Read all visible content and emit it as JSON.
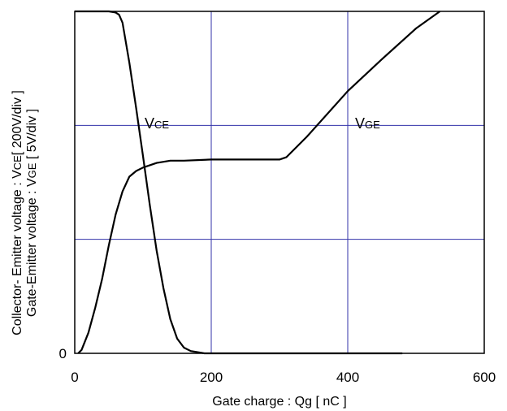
{
  "chart_data": {
    "type": "line",
    "xlabel": "Gate charge : Qg [ nC ]",
    "ylabel_line1_pre": "Collector- Emitter voltage : V",
    "ylabel_line1_sub": "CE",
    "ylabel_line1_post": "[ 200V/div ]",
    "ylabel_line2_pre": "Gate-Emitter voltage : V",
    "ylabel_line2_sub": "GE",
    "ylabel_line2_post": " [ 5V/div ]",
    "xlim": [
      0,
      600
    ],
    "ylim": [
      0,
      3
    ],
    "x_ticks": [
      "0",
      "200",
      "400",
      "600"
    ],
    "y_tick_label": "0",
    "grid": true,
    "series": [
      {
        "name_main": "V",
        "name_sub": "CE",
        "color": "#000000",
        "x": [
          0,
          50,
          60,
          65,
          70,
          80,
          90,
          100,
          110,
          120,
          130,
          140,
          150,
          160,
          170,
          180,
          190,
          200,
          300,
          480
        ],
        "y": [
          3.0,
          3.0,
          2.99,
          2.97,
          2.9,
          2.55,
          2.15,
          1.73,
          1.3,
          0.9,
          0.57,
          0.3,
          0.13,
          0.05,
          0.02,
          0.01,
          0.0,
          0.0,
          0.0,
          0.0
        ]
      },
      {
        "name_main": "V",
        "name_sub": "GE",
        "color": "#000000",
        "x": [
          5,
          10,
          20,
          30,
          40,
          50,
          60,
          70,
          80,
          90,
          100,
          120,
          140,
          160,
          200,
          250,
          300,
          310,
          340,
          400,
          450,
          500,
          535
        ],
        "y": [
          0.0,
          0.03,
          0.18,
          0.4,
          0.65,
          0.95,
          1.22,
          1.42,
          1.55,
          1.6,
          1.63,
          1.67,
          1.69,
          1.69,
          1.7,
          1.7,
          1.7,
          1.72,
          1.9,
          2.3,
          2.58,
          2.85,
          3.0
        ]
      }
    ]
  }
}
